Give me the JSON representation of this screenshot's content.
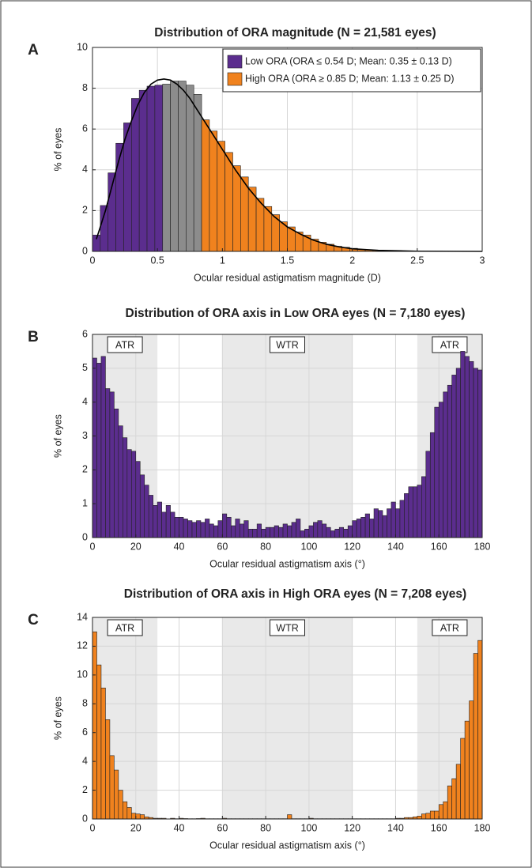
{
  "chart_data": [
    {
      "type": "histogram",
      "panel": "A",
      "title": "Distribution of ORA magnitude (N = 21,581 eyes)",
      "x_label": "Ocular residual astigmatism magnitude (D)",
      "y_label": "% of eyes",
      "xlim": [
        0,
        3
      ],
      "xticks": [
        0,
        0.5,
        1,
        1.5,
        2,
        2.5,
        3
      ],
      "ylim": [
        0,
        10
      ],
      "yticks": [
        0,
        2,
        4,
        6,
        8,
        10
      ],
      "grid": true,
      "legend": "upper right",
      "groups": [
        {
          "name": "Low ORA (ORA ≤ 0.54 D; Mean: 0.35 ± 0.13 D)",
          "color": "#5b2d8e",
          "bins": [
            0,
            0.06,
            0.12,
            0.18,
            0.24,
            0.3,
            0.36,
            0.42,
            0.48,
            0.54
          ],
          "values": [
            0.8,
            2.25,
            3.85,
            5.3,
            6.3,
            7.5,
            7.9,
            8.1,
            8.15
          ]
        },
        {
          "color": "#8c8c8c",
          "bins": [
            0.54,
            0.6,
            0.66,
            0.72,
            0.78,
            0.84
          ],
          "values": [
            8.2,
            8.35,
            8.35,
            8.15,
            7.7
          ]
        },
        {
          "name": "High ORA (ORA ≥ 0.85 D; Mean: 1.13 ± 0.25 D)",
          "color": "#f0821e",
          "bins": [
            0.84,
            0.9,
            0.96,
            1.02,
            1.08,
            1.14,
            1.2,
            1.26,
            1.32,
            1.38,
            1.44,
            1.5,
            1.56,
            1.62,
            1.68,
            1.74,
            1.8,
            1.86,
            1.92,
            1.98,
            2.04,
            2.1,
            2.16,
            2.22,
            2.28,
            2.34,
            2.4,
            2.46,
            2.52,
            2.58,
            2.64,
            2.7,
            2.76,
            2.82,
            2.88,
            2.94,
            3.0
          ],
          "values": [
            6.45,
            5.9,
            5.4,
            4.85,
            4.2,
            3.65,
            3.15,
            2.6,
            2.2,
            1.8,
            1.45,
            1.2,
            0.95,
            0.8,
            0.6,
            0.45,
            0.35,
            0.25,
            0.2,
            0.15,
            0.1,
            0.08,
            0.05,
            0.04,
            0.03,
            0.02,
            0.02,
            0.01,
            0.01,
            0.01,
            0.01,
            0,
            0,
            0,
            0,
            0
          ]
        }
      ],
      "curve": {
        "color": "#000000",
        "x": [
          0.03,
          0.1,
          0.15,
          0.2,
          0.25,
          0.3,
          0.35,
          0.4,
          0.45,
          0.5,
          0.55,
          0.6,
          0.65,
          0.7,
          0.75,
          0.8,
          0.9,
          1.0,
          1.1,
          1.2,
          1.3,
          1.4,
          1.5,
          1.6,
          1.7,
          1.8,
          1.9,
          2.0,
          2.2,
          2.5,
          3.0
        ],
        "values": [
          0.6,
          2.0,
          3.2,
          4.4,
          5.5,
          6.4,
          7.2,
          7.8,
          8.2,
          8.4,
          8.45,
          8.4,
          8.2,
          7.9,
          7.5,
          7.0,
          6.0,
          5.0,
          4.0,
          3.1,
          2.35,
          1.7,
          1.2,
          0.85,
          0.55,
          0.35,
          0.22,
          0.13,
          0.05,
          0.01,
          0
        ]
      }
    },
    {
      "type": "histogram",
      "panel": "B",
      "title": "Distribution of ORA axis in Low ORA eyes (N = 7,180 eyes)",
      "x_label": "Ocular residual astigmatism axis (°)",
      "y_label": "% of eyes",
      "xlim": [
        0,
        180
      ],
      "xticks": [
        0,
        20,
        40,
        60,
        80,
        100,
        120,
        140,
        160,
        180
      ],
      "ylim": [
        0,
        6
      ],
      "yticks": [
        0,
        1,
        2,
        3,
        4,
        5,
        6
      ],
      "grid": true,
      "color": "#5b2d8e",
      "regions": [
        {
          "range": [
            0,
            30
          ],
          "label": "ATR"
        },
        {
          "range": [
            60,
            120
          ],
          "label": "WTR"
        },
        {
          "range": [
            150,
            180
          ],
          "label": "ATR"
        }
      ],
      "bins": [
        0,
        2,
        4,
        6,
        8,
        10,
        12,
        14,
        16,
        18,
        20,
        22,
        24,
        26,
        28,
        30,
        32,
        34,
        36,
        38,
        40,
        42,
        44,
        46,
        48,
        50,
        52,
        54,
        56,
        58,
        60,
        62,
        64,
        66,
        68,
        70,
        72,
        74,
        76,
        78,
        80,
        82,
        84,
        86,
        88,
        90,
        92,
        94,
        96,
        98,
        100,
        102,
        104,
        106,
        108,
        110,
        112,
        114,
        116,
        118,
        120,
        122,
        124,
        126,
        128,
        130,
        132,
        134,
        136,
        138,
        140,
        142,
        144,
        146,
        148,
        150,
        152,
        154,
        156,
        158,
        160,
        162,
        164,
        166,
        168,
        170,
        172,
        174,
        176,
        178,
        180
      ],
      "values": [
        5.3,
        5.15,
        5.35,
        4.4,
        4.3,
        3.8,
        3.3,
        2.95,
        2.6,
        2.55,
        2.25,
        1.85,
        1.55,
        1.25,
        0.95,
        1.05,
        0.75,
        0.95,
        0.75,
        0.6,
        0.6,
        0.55,
        0.5,
        0.45,
        0.5,
        0.45,
        0.55,
        0.4,
        0.35,
        0.5,
        0.7,
        0.6,
        0.35,
        0.55,
        0.4,
        0.5,
        0.25,
        0.25,
        0.4,
        0.25,
        0.3,
        0.3,
        0.35,
        0.3,
        0.4,
        0.35,
        0.45,
        0.55,
        0.2,
        0.25,
        0.35,
        0.45,
        0.5,
        0.4,
        0.3,
        0.2,
        0.25,
        0.3,
        0.25,
        0.35,
        0.5,
        0.55,
        0.6,
        0.7,
        0.55,
        0.85,
        0.8,
        0.65,
        0.85,
        1.05,
        0.85,
        1.1,
        1.3,
        1.5,
        1.5,
        1.55,
        1.8,
        2.55,
        3.1,
        3.85,
        4.0,
        4.3,
        4.5,
        4.8,
        5.0,
        5.5,
        5.35,
        5.2,
        5.0,
        4.95
      ]
    },
    {
      "type": "histogram",
      "panel": "C",
      "title": "Distribution of ORA axis in High ORA eyes (N = 7,208 eyes)",
      "x_label": "Ocular residual astigmatism axis (°)",
      "y_label": "% of eyes",
      "xlim": [
        0,
        180
      ],
      "xticks": [
        0,
        20,
        40,
        60,
        80,
        100,
        120,
        140,
        160,
        180
      ],
      "ylim": [
        0,
        14
      ],
      "yticks": [
        0,
        2,
        4,
        6,
        8,
        10,
        12,
        14
      ],
      "grid": true,
      "color": "#f0821e",
      "regions": [
        {
          "range": [
            0,
            30
          ],
          "label": "ATR"
        },
        {
          "range": [
            60,
            120
          ],
          "label": "WTR"
        },
        {
          "range": [
            150,
            180
          ],
          "label": "ATR"
        }
      ],
      "bins": [
        0,
        2,
        4,
        6,
        8,
        10,
        12,
        14,
        16,
        18,
        20,
        22,
        24,
        26,
        28,
        30,
        32,
        34,
        36,
        38,
        40,
        42,
        44,
        46,
        48,
        50,
        52,
        54,
        56,
        58,
        60,
        62,
        64,
        66,
        68,
        70,
        72,
        74,
        76,
        78,
        80,
        82,
        84,
        86,
        88,
        90,
        92,
        94,
        96,
        98,
        100,
        102,
        104,
        106,
        108,
        110,
        112,
        114,
        116,
        118,
        120,
        122,
        124,
        126,
        128,
        130,
        132,
        134,
        136,
        138,
        140,
        142,
        144,
        146,
        148,
        150,
        152,
        154,
        156,
        158,
        160,
        162,
        164,
        166,
        168,
        170,
        172,
        174,
        176,
        178,
        180
      ],
      "values": [
        13.0,
        10.7,
        9.1,
        6.9,
        4.4,
        3.4,
        2.0,
        1.2,
        0.8,
        0.4,
        0.35,
        0.3,
        0.15,
        0.1,
        0.05,
        0.05,
        0.05,
        0,
        0.05,
        0.02,
        0.05,
        0.03,
        0.02,
        0.02,
        0.03,
        0.05,
        0.02,
        0.02,
        0.02,
        0.02,
        0.05,
        0.02,
        0.02,
        0.02,
        0.02,
        0.02,
        0.02,
        0.02,
        0.02,
        0.02,
        0.02,
        0.02,
        0.02,
        0.02,
        0.02,
        0.3,
        0.02,
        0.02,
        0.02,
        0.02,
        0.05,
        0.02,
        0.02,
        0.02,
        0.02,
        0.02,
        0.02,
        0.02,
        0.02,
        0.02,
        0.02,
        0.02,
        0.02,
        0.02,
        0.02,
        0.02,
        0.02,
        0.02,
        0.02,
        0.02,
        0.05,
        0.05,
        0.1,
        0.1,
        0.15,
        0.2,
        0.35,
        0.4,
        0.55,
        0.55,
        1.0,
        1.2,
        2.3,
        2.8,
        3.8,
        5.6,
        6.8,
        8.2,
        11.5,
        12.4
      ]
    }
  ]
}
